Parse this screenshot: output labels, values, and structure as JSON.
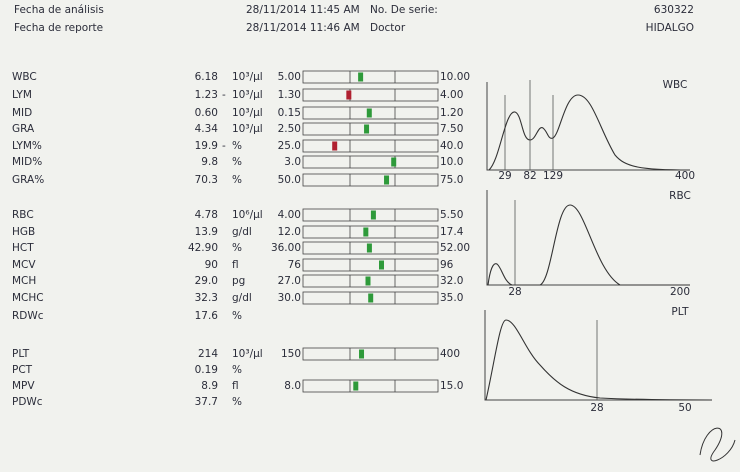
{
  "header": {
    "rows": [
      {
        "label": "Fecha de análisis",
        "datetime": "28/11/2014 11:45 AM",
        "field": "No. De serie:",
        "value": "630322"
      },
      {
        "label": "Fecha de reporte",
        "datetime": "28/11/2014 11:46 AM",
        "field": "Doctor",
        "value": "HIDALGO"
      }
    ]
  },
  "results": [
    {
      "name": "WBC",
      "value": "6.18",
      "unit": "10³/µl",
      "low": "5.00",
      "high": "10.00"
    },
    {
      "name": "LYM",
      "value": "1.23",
      "flag": "-",
      "unit": "10³/µl",
      "low": "1.30",
      "high": "4.00"
    },
    {
      "name": "MID",
      "value": "0.60",
      "unit": "10³/µl",
      "low": "0.15",
      "high": "1.20"
    },
    {
      "name": "GRA",
      "value": "4.34",
      "unit": "10³/µl",
      "low": "2.50",
      "high": "7.50"
    },
    {
      "name": "LYM%",
      "value": "19.9",
      "flag": "-",
      "unit": "%",
      "low": "25.0",
      "high": "40.0"
    },
    {
      "name": "MID%",
      "value": "9.8",
      "unit": "%",
      "low": "3.0",
      "high": "10.0"
    },
    {
      "name": "GRA%",
      "value": "70.3",
      "unit": "%",
      "low": "50.0",
      "high": "75.0"
    },
    {
      "name": "RBC",
      "value": "4.78",
      "unit": "10⁶/µl",
      "low": "4.00",
      "high": "5.50"
    },
    {
      "name": "HGB",
      "value": "13.9",
      "unit": "g/dl",
      "low": "12.0",
      "high": "17.4"
    },
    {
      "name": "HCT",
      "value": "42.90",
      "unit": "%",
      "low": "36.00",
      "high": "52.00"
    },
    {
      "name": "MCV",
      "value": "90",
      "unit": "fl",
      "low": "76",
      "high": "96"
    },
    {
      "name": "MCH",
      "value": "29.0",
      "unit": "pg",
      "low": "27.0",
      "high": "32.0"
    },
    {
      "name": "MCHC",
      "value": "32.3",
      "unit": "g/dl",
      "low": "30.0",
      "high": "35.0"
    },
    {
      "name": "RDWc",
      "value": "17.6",
      "unit": "%"
    },
    {
      "name": "PLT",
      "value": "214",
      "unit": "10³/µl",
      "low": "150",
      "high": "400"
    },
    {
      "name": "PCT",
      "value": "0.19",
      "unit": "%"
    },
    {
      "name": "MPV",
      "value": "8.9",
      "unit": "fl",
      "low": "8.0",
      "high": "15.0"
    },
    {
      "name": "PDWc",
      "value": "37.7",
      "unit": "%"
    }
  ],
  "histograms": [
    {
      "label": "WBC",
      "ticks": [
        "29",
        "82",
        "129",
        "400"
      ]
    },
    {
      "label": "RBC",
      "ticks": [
        "28",
        "200"
      ]
    },
    {
      "label": "PLT",
      "ticks": [
        "28",
        "50"
      ]
    }
  ]
}
